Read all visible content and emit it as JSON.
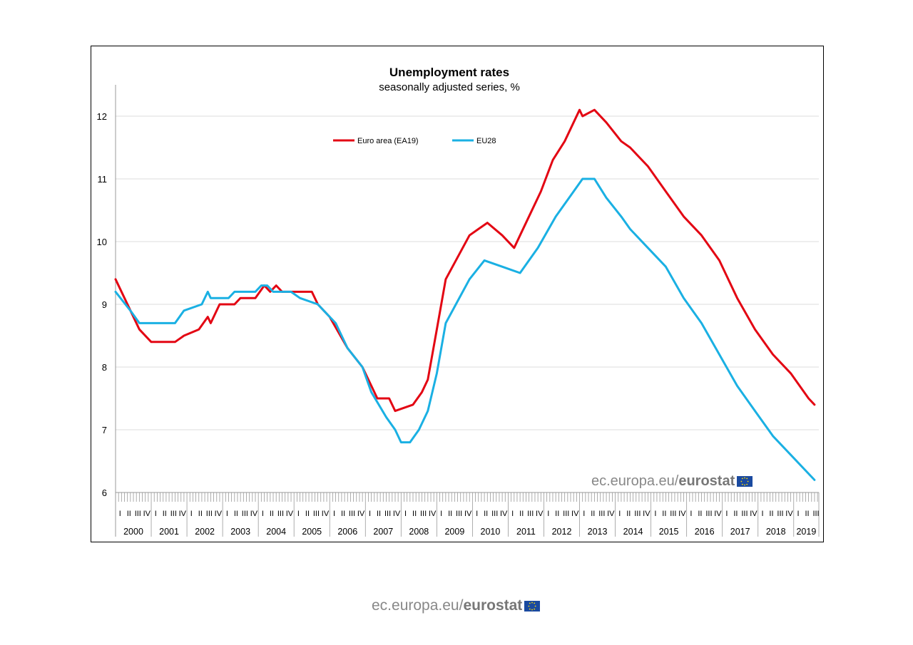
{
  "chart_data": {
    "type": "line",
    "title": "Unemployment rates",
    "subtitle": "seasonally adjusted series, %",
    "ylim": [
      6,
      12.5
    ],
    "yticks": [
      6,
      7,
      8,
      9,
      10,
      11,
      12
    ],
    "ytick_labels": [
      "6",
      "7",
      "8",
      "9",
      "10",
      "11",
      "12"
    ],
    "grid": "horizontal",
    "legend_position": "top-center",
    "x_start": "2000-01",
    "quarter_labels": [
      "I",
      "II",
      "III",
      "IV"
    ],
    "years": [
      "2000",
      "2001",
      "2002",
      "2003",
      "2004",
      "2005",
      "2006",
      "2007",
      "2008",
      "2009",
      "2010",
      "2011",
      "2012",
      "2013",
      "2014",
      "2015",
      "2016",
      "2017",
      "2018",
      "2019"
    ],
    "series": [
      {
        "name": "Euro area (EA19)",
        "color": "#e30613",
        "keypoints": [
          [
            "2000-01",
            9.4
          ],
          [
            "2000-09",
            8.6
          ],
          [
            "2001-01",
            8.4
          ],
          [
            "2001-09",
            8.4
          ],
          [
            "2001-12",
            8.5
          ],
          [
            "2002-05",
            8.6
          ],
          [
            "2002-08",
            8.8
          ],
          [
            "2002-09",
            8.7
          ],
          [
            "2002-12",
            9.0
          ],
          [
            "2003-05",
            9.0
          ],
          [
            "2003-07",
            9.1
          ],
          [
            "2003-12",
            9.1
          ],
          [
            "2004-03",
            9.3
          ],
          [
            "2004-05",
            9.2
          ],
          [
            "2004-07",
            9.3
          ],
          [
            "2004-09",
            9.2
          ],
          [
            "2005-07",
            9.2
          ],
          [
            "2005-09",
            9.0
          ],
          [
            "2006-01",
            8.8
          ],
          [
            "2006-07",
            8.3
          ],
          [
            "2006-12",
            8.0
          ],
          [
            "2007-05",
            7.5
          ],
          [
            "2007-09",
            7.5
          ],
          [
            "2007-11",
            7.3
          ],
          [
            "2008-05",
            7.4
          ],
          [
            "2008-08",
            7.6
          ],
          [
            "2008-10",
            7.8
          ],
          [
            "2009-01",
            8.6
          ],
          [
            "2009-04",
            9.4
          ],
          [
            "2009-12",
            10.1
          ],
          [
            "2010-03",
            10.2
          ],
          [
            "2010-06",
            10.3
          ],
          [
            "2010-11",
            10.1
          ],
          [
            "2011-03",
            9.9
          ],
          [
            "2011-05",
            10.1
          ],
          [
            "2011-08",
            10.4
          ],
          [
            "2011-12",
            10.8
          ],
          [
            "2012-04",
            11.3
          ],
          [
            "2012-08",
            11.6
          ],
          [
            "2013-01",
            12.1
          ],
          [
            "2013-02",
            12.0
          ],
          [
            "2013-06",
            12.1
          ],
          [
            "2013-10",
            11.9
          ],
          [
            "2014-03",
            11.6
          ],
          [
            "2014-06",
            11.5
          ],
          [
            "2014-12",
            11.2
          ],
          [
            "2015-06",
            10.8
          ],
          [
            "2015-12",
            10.4
          ],
          [
            "2016-06",
            10.1
          ],
          [
            "2016-12",
            9.7
          ],
          [
            "2017-06",
            9.1
          ],
          [
            "2017-12",
            8.6
          ],
          [
            "2018-06",
            8.2
          ],
          [
            "2018-12",
            7.9
          ],
          [
            "2019-06",
            7.5
          ],
          [
            "2019-08",
            7.4
          ]
        ]
      },
      {
        "name": "EU28",
        "color": "#1ab0e3",
        "keypoints": [
          [
            "2000-01",
            9.2
          ],
          [
            "2000-06",
            8.9
          ],
          [
            "2000-09",
            8.7
          ],
          [
            "2001-09",
            8.7
          ],
          [
            "2001-12",
            8.9
          ],
          [
            "2002-06",
            9.0
          ],
          [
            "2002-08",
            9.2
          ],
          [
            "2002-09",
            9.1
          ],
          [
            "2003-03",
            9.1
          ],
          [
            "2003-05",
            9.2
          ],
          [
            "2003-12",
            9.2
          ],
          [
            "2004-02",
            9.3
          ],
          [
            "2004-04",
            9.3
          ],
          [
            "2004-06",
            9.2
          ],
          [
            "2004-12",
            9.2
          ],
          [
            "2005-03",
            9.1
          ],
          [
            "2005-09",
            9.0
          ],
          [
            "2005-11",
            8.9
          ],
          [
            "2006-03",
            8.7
          ],
          [
            "2006-07",
            8.3
          ],
          [
            "2006-12",
            8.0
          ],
          [
            "2007-03",
            7.6
          ],
          [
            "2007-08",
            7.2
          ],
          [
            "2007-11",
            7.0
          ],
          [
            "2008-01",
            6.8
          ],
          [
            "2008-04",
            6.8
          ],
          [
            "2008-07",
            7.0
          ],
          [
            "2008-10",
            7.3
          ],
          [
            "2009-01",
            7.9
          ],
          [
            "2009-04",
            8.7
          ],
          [
            "2009-12",
            9.4
          ],
          [
            "2010-05",
            9.7
          ],
          [
            "2010-11",
            9.6
          ],
          [
            "2011-05",
            9.5
          ],
          [
            "2011-11",
            9.9
          ],
          [
            "2012-05",
            10.4
          ],
          [
            "2012-11",
            10.8
          ],
          [
            "2013-02",
            11.0
          ],
          [
            "2013-06",
            11.0
          ],
          [
            "2013-10",
            10.7
          ],
          [
            "2014-03",
            10.4
          ],
          [
            "2014-06",
            10.2
          ],
          [
            "2014-12",
            9.9
          ],
          [
            "2015-06",
            9.6
          ],
          [
            "2015-12",
            9.1
          ],
          [
            "2016-06",
            8.7
          ],
          [
            "2016-12",
            8.2
          ],
          [
            "2017-06",
            7.7
          ],
          [
            "2017-12",
            7.3
          ],
          [
            "2018-06",
            6.9
          ],
          [
            "2018-12",
            6.6
          ],
          [
            "2019-06",
            6.3
          ],
          [
            "2019-08",
            6.2
          ]
        ]
      }
    ]
  },
  "watermark": {
    "prefix": "ec.europa.eu/",
    "brand": "eurostat"
  },
  "footer": {
    "prefix": "ec.europa.eu/",
    "brand": "eurostat"
  }
}
